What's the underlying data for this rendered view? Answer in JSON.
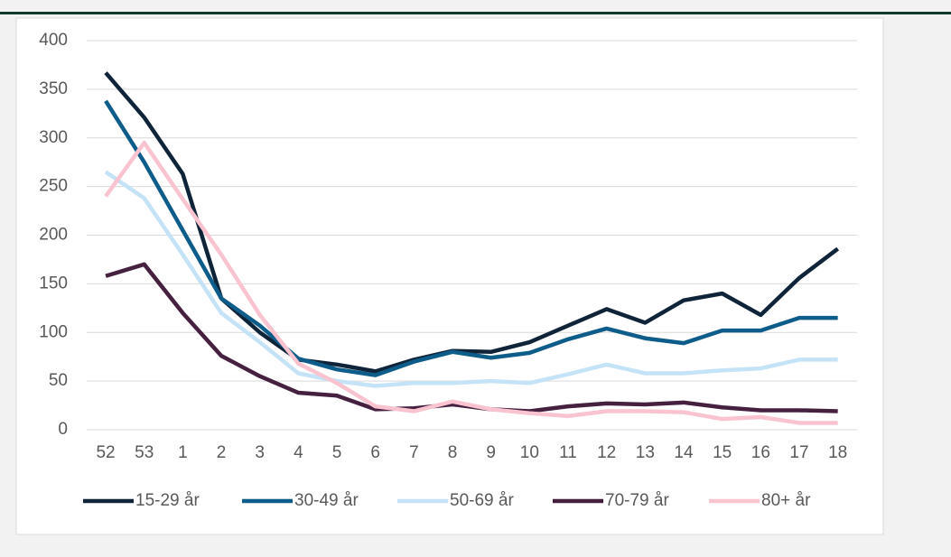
{
  "chart_data": {
    "type": "line",
    "categories": [
      "52",
      "53",
      "1",
      "2",
      "3",
      "4",
      "5",
      "6",
      "7",
      "8",
      "9",
      "10",
      "11",
      "12",
      "13",
      "14",
      "15",
      "16",
      "17",
      "18"
    ],
    "series": [
      {
        "name": "15-29 år",
        "color": "#0f2438",
        "values": [
          367,
          321,
          263,
          135,
          100,
          72,
          67,
          60,
          72,
          81,
          80,
          90,
          107,
          124,
          110,
          133,
          140,
          118,
          156,
          186
        ]
      },
      {
        "name": "30-49 år",
        "color": "#0d5c8a",
        "values": [
          338,
          275,
          205,
          135,
          107,
          73,
          62,
          56,
          70,
          80,
          74,
          79,
          93,
          104,
          94,
          89,
          102,
          102,
          115,
          115
        ]
      },
      {
        "name": "50-69 år",
        "color": "#c5e3f7",
        "values": [
          265,
          238,
          180,
          120,
          90,
          58,
          50,
          45,
          48,
          48,
          50,
          48,
          57,
          67,
          58,
          58,
          61,
          63,
          72,
          72
        ]
      },
      {
        "name": "70-79 år",
        "color": "#45203f",
        "values": [
          158,
          170,
          120,
          76,
          55,
          38,
          35,
          21,
          22,
          26,
          21,
          19,
          24,
          27,
          26,
          28,
          23,
          20,
          20,
          19
        ]
      },
      {
        "name": "80+ år",
        "color": "#f9c3d0",
        "values": [
          240,
          295,
          237,
          180,
          118,
          68,
          48,
          24,
          19,
          29,
          21,
          17,
          14,
          19,
          19,
          18,
          11,
          13,
          7,
          7
        ]
      }
    ],
    "ylim": [
      0,
      400
    ],
    "yticks": [
      0,
      50,
      100,
      150,
      200,
      250,
      300,
      350,
      400
    ],
    "grid": true,
    "legend": "bottom"
  }
}
